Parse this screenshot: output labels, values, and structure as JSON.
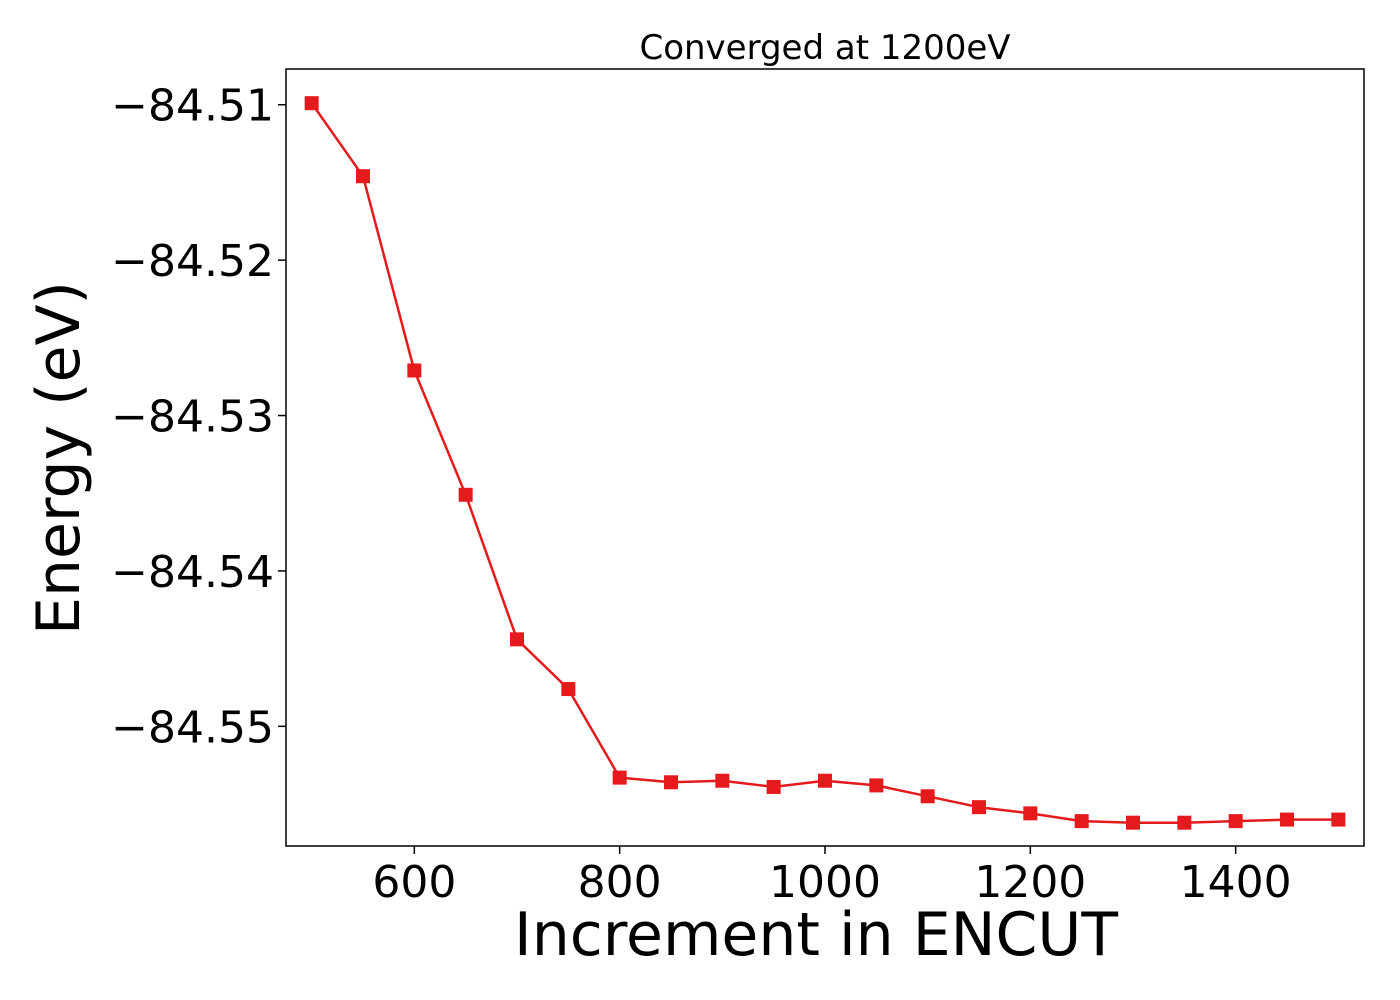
{
  "chart_data": {
    "type": "line",
    "title": "Converged at 1200eV",
    "xlabel": "Increment in ENCUT",
    "ylabel": "Energy (eV)",
    "xlim": [
      475,
      1525
    ],
    "ylim": [
      -84.5577,
      -84.5077
    ],
    "xticks": [
      600,
      800,
      1000,
      1200,
      1400
    ],
    "xtick_labels": [
      "600",
      "800",
      "1000",
      "1200",
      "1400"
    ],
    "yticks": [
      -84.51,
      -84.52,
      -84.53,
      -84.54,
      -84.55
    ],
    "ytick_labels": [
      "−84.51",
      "−84.52",
      "−84.53",
      "−84.54",
      "−84.55"
    ],
    "grid": false,
    "series": [
      {
        "color": "#e41a1c",
        "marker": "square",
        "x": [
          500,
          550,
          600,
          650,
          700,
          750,
          800,
          850,
          900,
          950,
          1000,
          1050,
          1100,
          1150,
          1200,
          1250,
          1300,
          1350,
          1400,
          1450,
          1500
        ],
        "y": [
          -84.5099,
          -84.5146,
          -84.5271,
          -84.5351,
          -84.5444,
          -84.5476,
          -84.5533,
          -84.5536,
          -84.5535,
          -84.5539,
          -84.5535,
          -84.5538,
          -84.5545,
          -84.5552,
          -84.5556,
          -84.5561,
          -84.5562,
          -84.5562,
          -84.5561,
          -84.556,
          -84.556
        ]
      }
    ]
  }
}
